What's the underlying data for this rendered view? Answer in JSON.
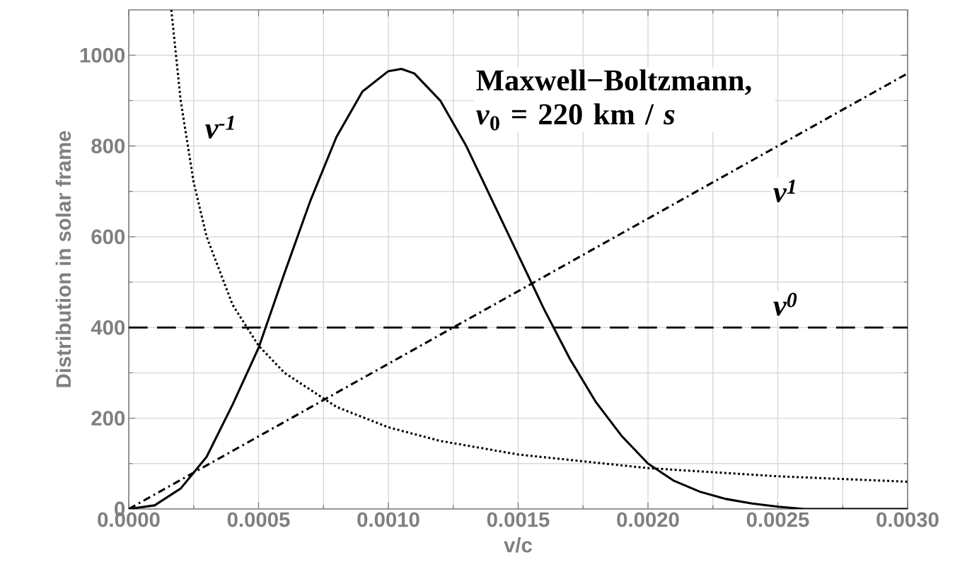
{
  "chart_data": {
    "type": "line",
    "xlabel": "v/c",
    "ylabel": "Distribution in solar frame",
    "xlim": [
      0,
      0.003
    ],
    "ylim": [
      0,
      1100
    ],
    "xticks": [
      {
        "value": 0,
        "label": "0.0000"
      },
      {
        "value": 0.0005,
        "label": "0.0005"
      },
      {
        "value": 0.001,
        "label": "0.0010"
      },
      {
        "value": 0.0015,
        "label": "0.0015"
      },
      {
        "value": 0.002,
        "label": "0.0020"
      },
      {
        "value": 0.0025,
        "label": "0.0025"
      },
      {
        "value": 0.003,
        "label": "0.0030"
      }
    ],
    "yticks": [
      0,
      200,
      400,
      600,
      800,
      1000
    ],
    "grid": true,
    "series": [
      {
        "name": "Maxwell−Boltzmann, *v*$_{0}$ = 220 km / *s*",
        "color": "#000000",
        "line_style": "solid",
        "x": [
          0,
          0.0001,
          0.0002,
          0.0003,
          0.0004,
          0.0005,
          0.0006,
          0.0007,
          0.0008,
          0.0009,
          0.001,
          0.00105,
          0.0011,
          0.0012,
          0.0013,
          0.0014,
          0.0015,
          0.0016,
          0.0017,
          0.0018,
          0.0019,
          0.002,
          0.0021,
          0.0022,
          0.0023,
          0.0024,
          0.0025,
          0.0026,
          0.0027,
          0.0028,
          0.0029,
          0.003
        ],
        "values": [
          0,
          8,
          45,
          115,
          230,
          355,
          520,
          680,
          820,
          920,
          965,
          970,
          960,
          900,
          800,
          680,
          560,
          440,
          330,
          235,
          160,
          100,
          62,
          38,
          22,
          12,
          5,
          0,
          0,
          0,
          0,
          0
        ]
      },
      {
        "name": "ν$^{-1}$",
        "color": "#000000",
        "line_style": "dotted",
        "x": [
          0.000164,
          0.0002,
          0.00025,
          0.0003,
          0.0004,
          0.0005,
          0.0006,
          0.0008,
          0.001,
          0.0012,
          0.0015,
          0.002,
          0.0025,
          0.003
        ],
        "values": [
          1100,
          900,
          720,
          600,
          450,
          360,
          300,
          225,
          180,
          150,
          120,
          90,
          72,
          60
        ]
      },
      {
        "name": "ν$^{0}$",
        "color": "#000000",
        "line_style": "dashed",
        "x": [
          0,
          0.003
        ],
        "values": [
          400,
          400
        ]
      },
      {
        "name": "ν$^{1}$",
        "color": "#000000",
        "line_style": "dashdot",
        "x": [
          0,
          0.003
        ],
        "values": [
          0,
          960
        ]
      }
    ]
  }
}
